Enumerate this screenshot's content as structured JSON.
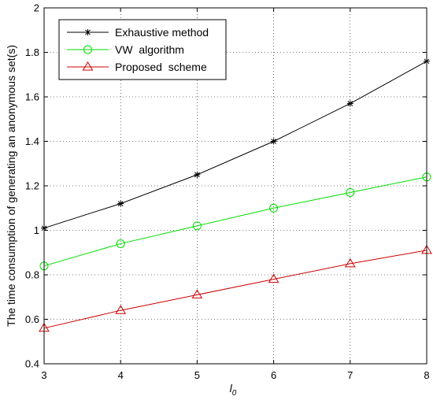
{
  "chart_data": {
    "type": "line",
    "xlabel": "l",
    "xlabel_subscript": "0",
    "ylabel": "The time consumption of generating an anonymous set(s)",
    "xlim": [
      3,
      8
    ],
    "ylim": [
      0.4,
      2
    ],
    "x_ticks": [
      "3",
      "4",
      "5",
      "6",
      "7",
      "8"
    ],
    "y_ticks": [
      "0.4",
      "0.6",
      "0.8",
      "1",
      "1.2",
      "1.4",
      "1.6",
      "1.8",
      "2"
    ],
    "grid": "dotted",
    "legend_position": "top-left",
    "x": [
      3,
      4,
      5,
      6,
      7,
      8
    ],
    "series": [
      {
        "name": "Exhaustive method",
        "color": "#000000",
        "marker": "asterisk",
        "values": [
          1.01,
          1.12,
          1.25,
          1.4,
          1.57,
          1.76
        ]
      },
      {
        "name": "VW  algorithm",
        "color": "#00dd00",
        "marker": "circle",
        "values": [
          0.84,
          0.94,
          1.02,
          1.1,
          1.17,
          1.24
        ]
      },
      {
        "name": "Proposed  scheme",
        "color": "#cc0000",
        "marker": "triangle",
        "values": [
          0.56,
          0.64,
          0.71,
          0.78,
          0.85,
          0.91
        ]
      }
    ]
  }
}
